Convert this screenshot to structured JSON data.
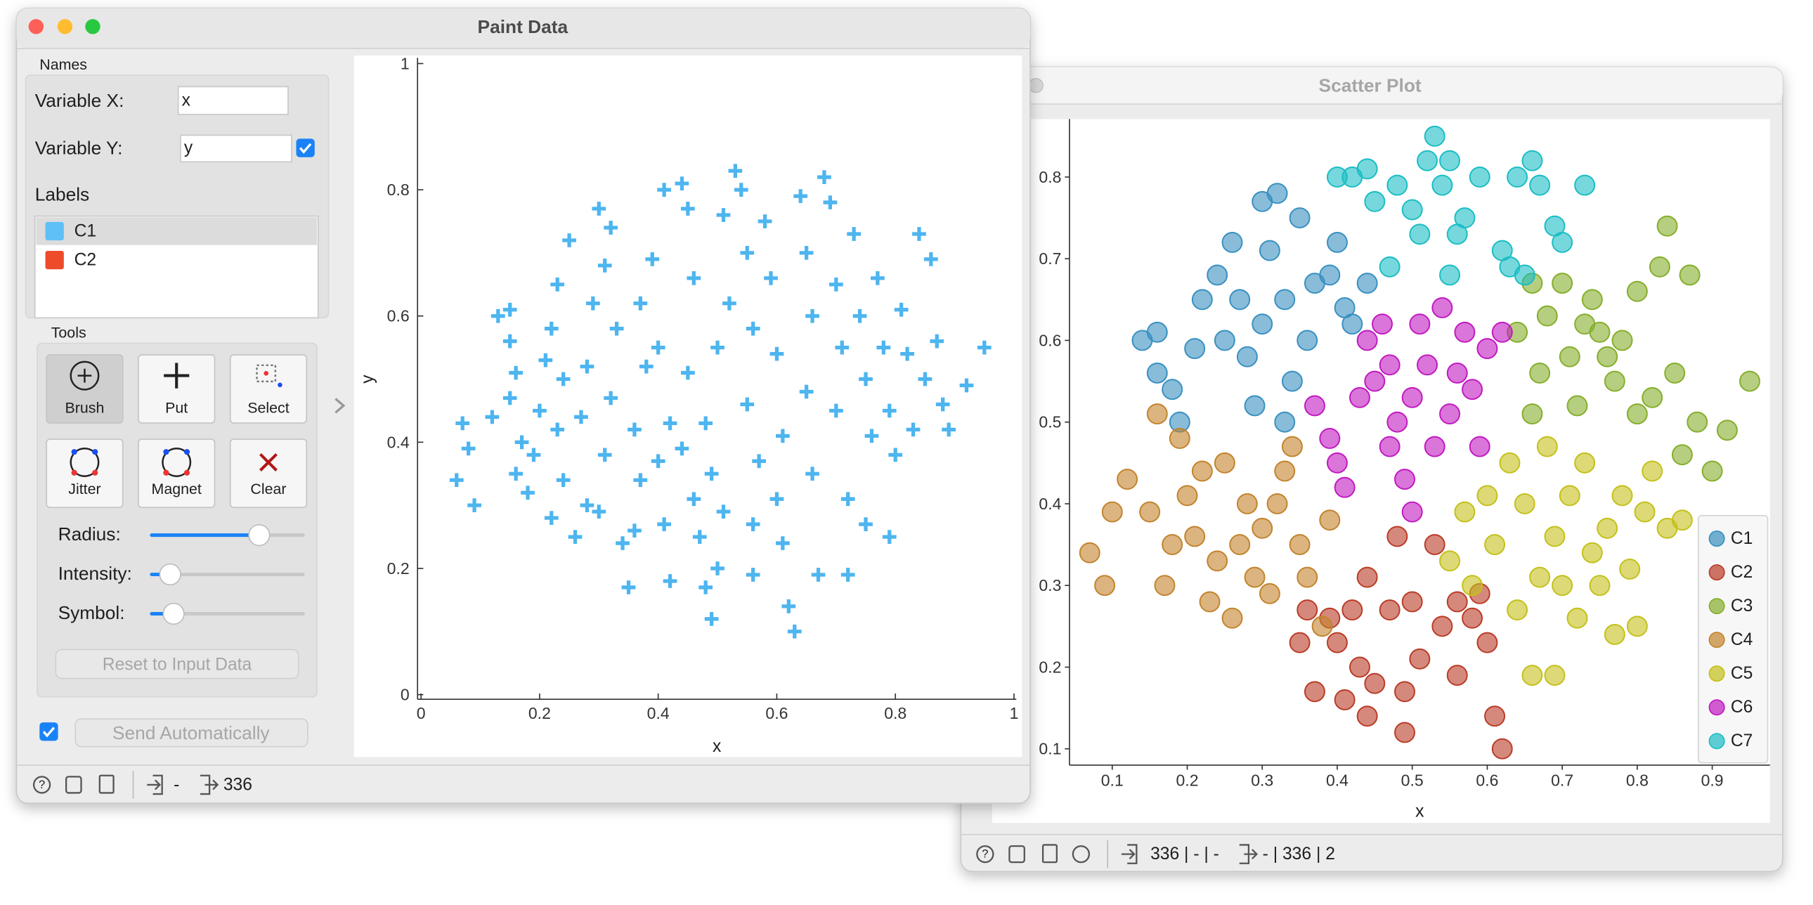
{
  "paint_window": {
    "title": "Paint Data",
    "names_heading": "Names",
    "variable_x_label": "Variable X:",
    "variable_x_value": "x",
    "variable_y_label": "Variable Y:",
    "variable_y_value": "y",
    "labels_heading": "Labels",
    "labels": [
      {
        "name": "C1",
        "color": "#5ec0f7"
      },
      {
        "name": "C2",
        "color": "#ee4b2b"
      }
    ],
    "tools_heading": "Tools",
    "tools": [
      "Brush",
      "Put",
      "Select",
      "Jitter",
      "Magnet",
      "Clear"
    ],
    "sliders": [
      "Radius:",
      "Intensity:",
      "Symbol:"
    ],
    "reset_button": "Reset to Input Data",
    "send_button": "Send Automatically",
    "status_input": "-",
    "status_output": "336"
  },
  "scatter_window": {
    "title": "Scatter Plot",
    "status_input": "336 | - | -",
    "status_output": "- | 336 | 2"
  },
  "chart_data": [
    {
      "type": "scatter",
      "marker": "plus",
      "color": "#4db5ef",
      "xlabel": "x",
      "ylabel": "y",
      "xlim": [
        0,
        1
      ],
      "ylim": [
        0,
        1
      ],
      "xticks": [
        0,
        0.2,
        0.4,
        0.6,
        0.8,
        1
      ],
      "yticks": [
        0,
        0.2,
        0.4,
        0.6,
        0.8,
        1
      ],
      "grid": false,
      "x": [
        0.07,
        0.06,
        0.09,
        0.08,
        0.12,
        0.13,
        0.15,
        0.15,
        0.16,
        0.15,
        0.17,
        0.16,
        0.18,
        0.19,
        0.2,
        0.21,
        0.22,
        0.23,
        0.25,
        0.24,
        0.23,
        0.22,
        0.24,
        0.26,
        0.28,
        0.27,
        0.28,
        0.29,
        0.3,
        0.31,
        0.32,
        0.33,
        0.32,
        0.31,
        0.3,
        0.34,
        0.35,
        0.36,
        0.37,
        0.36,
        0.38,
        0.37,
        0.39,
        0.41,
        0.4,
        0.42,
        0.4,
        0.41,
        0.42,
        0.44,
        0.45,
        0.46,
        0.45,
        0.44,
        0.46,
        0.47,
        0.48,
        0.49,
        0.5,
        0.51,
        0.49,
        0.48,
        0.5,
        0.52,
        0.51,
        0.53,
        0.54,
        0.55,
        0.56,
        0.55,
        0.57,
        0.56,
        0.56,
        0.58,
        0.59,
        0.6,
        0.61,
        0.6,
        0.61,
        0.62,
        0.63,
        0.64,
        0.65,
        0.66,
        0.65,
        0.66,
        0.67,
        0.68,
        0.69,
        0.7,
        0.71,
        0.7,
        0.72,
        0.72,
        0.73,
        0.74,
        0.75,
        0.76,
        0.75,
        0.77,
        0.78,
        0.79,
        0.8,
        0.79,
        0.81,
        0.82,
        0.83,
        0.84,
        0.85,
        0.86,
        0.87,
        0.88,
        0.89,
        0.92,
        0.95
      ],
      "values": [
        0.43,
        0.34,
        0.3,
        0.39,
        0.44,
        0.6,
        0.61,
        0.56,
        0.51,
        0.47,
        0.4,
        0.35,
        0.32,
        0.38,
        0.45,
        0.53,
        0.58,
        0.65,
        0.72,
        0.5,
        0.42,
        0.28,
        0.34,
        0.25,
        0.3,
        0.44,
        0.52,
        0.62,
        0.77,
        0.68,
        0.74,
        0.58,
        0.47,
        0.38,
        0.29,
        0.24,
        0.17,
        0.26,
        0.34,
        0.42,
        0.52,
        0.62,
        0.69,
        0.8,
        0.55,
        0.43,
        0.37,
        0.27,
        0.18,
        0.81,
        0.77,
        0.66,
        0.51,
        0.39,
        0.31,
        0.25,
        0.17,
        0.12,
        0.2,
        0.29,
        0.35,
        0.43,
        0.55,
        0.62,
        0.76,
        0.83,
        0.8,
        0.7,
        0.58,
        0.46,
        0.37,
        0.27,
        0.19,
        0.75,
        0.66,
        0.54,
        0.41,
        0.31,
        0.24,
        0.14,
        0.1,
        0.79,
        0.7,
        0.6,
        0.48,
        0.35,
        0.19,
        0.82,
        0.78,
        0.65,
        0.55,
        0.45,
        0.31,
        0.19,
        0.73,
        0.6,
        0.5,
        0.41,
        0.27,
        0.66,
        0.55,
        0.45,
        0.38,
        0.25,
        0.61,
        0.54,
        0.42,
        0.73,
        0.5,
        0.69,
        0.56,
        0.46,
        0.42,
        0.49,
        0.55
      ]
    },
    {
      "type": "scatter",
      "marker": "circle",
      "xlabel": "x",
      "legend": "lower right",
      "grid": false,
      "xlim": [
        0.043,
        0.977
      ],
      "ylim": [
        0.08,
        0.871
      ],
      "xticks": [
        0.1,
        0.2,
        0.3,
        0.4,
        0.5,
        0.6,
        0.7,
        0.8,
        0.9
      ],
      "yticks": [
        0.1,
        0.2,
        0.3,
        0.4,
        0.5,
        0.6,
        0.7,
        0.8
      ],
      "series": [
        {
          "name": "C1",
          "color": "#46b4f0",
          "x": [
            0.14,
            0.16,
            0.16,
            0.18,
            0.19,
            0.21,
            0.22,
            0.24,
            0.25,
            0.26,
            0.27,
            0.28,
            0.29,
            0.3,
            0.31,
            0.32,
            0.33,
            0.34,
            0.35,
            0.36,
            0.37,
            0.39,
            0.4,
            0.41,
            0.42,
            0.44,
            0.33,
            0.3
          ],
          "values": [
            0.6,
            0.61,
            0.56,
            0.54,
            0.5,
            0.59,
            0.65,
            0.68,
            0.6,
            0.72,
            0.65,
            0.58,
            0.52,
            0.77,
            0.71,
            0.78,
            0.65,
            0.55,
            0.75,
            0.6,
            0.67,
            0.68,
            0.72,
            0.64,
            0.62,
            0.67,
            0.5,
            0.62
          ]
        },
        {
          "name": "C2",
          "color": "#e84a30",
          "x": [
            0.35,
            0.36,
            0.37,
            0.39,
            0.4,
            0.42,
            0.43,
            0.44,
            0.45,
            0.47,
            0.48,
            0.49,
            0.49,
            0.5,
            0.51,
            0.53,
            0.54,
            0.56,
            0.56,
            0.58,
            0.59,
            0.6,
            0.61,
            0.62,
            0.41,
            0.44
          ],
          "values": [
            0.23,
            0.27,
            0.17,
            0.26,
            0.23,
            0.27,
            0.2,
            0.31,
            0.18,
            0.27,
            0.36,
            0.17,
            0.12,
            0.28,
            0.21,
            0.35,
            0.25,
            0.28,
            0.19,
            0.26,
            0.29,
            0.23,
            0.14,
            0.1,
            0.16,
            0.14
          ]
        },
        {
          "name": "C3",
          "color": "#a6d935",
          "x": [
            0.64,
            0.66,
            0.67,
            0.68,
            0.7,
            0.71,
            0.72,
            0.73,
            0.74,
            0.76,
            0.77,
            0.78,
            0.8,
            0.8,
            0.82,
            0.83,
            0.84,
            0.85,
            0.86,
            0.87,
            0.88,
            0.9,
            0.92,
            0.95,
            0.66,
            0.75
          ],
          "values": [
            0.61,
            0.67,
            0.56,
            0.63,
            0.67,
            0.58,
            0.52,
            0.62,
            0.65,
            0.58,
            0.55,
            0.6,
            0.66,
            0.51,
            0.53,
            0.69,
            0.74,
            0.56,
            0.46,
            0.68,
            0.5,
            0.44,
            0.49,
            0.55,
            0.51,
            0.61
          ]
        },
        {
          "name": "C4",
          "color": "#f3a437",
          "x": [
            0.07,
            0.09,
            0.1,
            0.12,
            0.15,
            0.16,
            0.17,
            0.18,
            0.19,
            0.2,
            0.21,
            0.22,
            0.23,
            0.24,
            0.25,
            0.26,
            0.27,
            0.28,
            0.29,
            0.3,
            0.31,
            0.32,
            0.33,
            0.34,
            0.35,
            0.36,
            0.38,
            0.39
          ],
          "values": [
            0.34,
            0.3,
            0.39,
            0.43,
            0.39,
            0.51,
            0.3,
            0.35,
            0.48,
            0.41,
            0.36,
            0.44,
            0.28,
            0.33,
            0.45,
            0.26,
            0.35,
            0.4,
            0.31,
            0.37,
            0.29,
            0.4,
            0.44,
            0.47,
            0.35,
            0.31,
            0.25,
            0.38
          ]
        },
        {
          "name": "C5",
          "color": "#f5f021",
          "x": [
            0.55,
            0.57,
            0.58,
            0.6,
            0.61,
            0.63,
            0.64,
            0.65,
            0.66,
            0.67,
            0.68,
            0.69,
            0.7,
            0.71,
            0.72,
            0.73,
            0.74,
            0.75,
            0.76,
            0.77,
            0.78,
            0.79,
            0.8,
            0.81,
            0.82,
            0.84,
            0.86,
            0.69
          ],
          "values": [
            0.33,
            0.39,
            0.3,
            0.41,
            0.35,
            0.45,
            0.27,
            0.4,
            0.19,
            0.31,
            0.47,
            0.36,
            0.3,
            0.41,
            0.26,
            0.45,
            0.34,
            0.3,
            0.37,
            0.24,
            0.41,
            0.32,
            0.25,
            0.39,
            0.44,
            0.37,
            0.38,
            0.19
          ]
        },
        {
          "name": "C6",
          "color": "#f11ff0",
          "x": [
            0.37,
            0.39,
            0.4,
            0.41,
            0.43,
            0.44,
            0.45,
            0.46,
            0.47,
            0.48,
            0.49,
            0.5,
            0.51,
            0.52,
            0.53,
            0.54,
            0.55,
            0.56,
            0.57,
            0.58,
            0.59,
            0.6,
            0.62,
            0.47,
            0.5
          ],
          "values": [
            0.52,
            0.48,
            0.45,
            0.42,
            0.53,
            0.6,
            0.55,
            0.62,
            0.57,
            0.5,
            0.43,
            0.53,
            0.62,
            0.57,
            0.47,
            0.64,
            0.51,
            0.56,
            0.61,
            0.54,
            0.47,
            0.59,
            0.61,
            0.47,
            0.39
          ]
        },
        {
          "name": "C7",
          "color": "#21ecf5",
          "x": [
            0.4,
            0.42,
            0.44,
            0.45,
            0.47,
            0.48,
            0.5,
            0.51,
            0.52,
            0.53,
            0.54,
            0.55,
            0.55,
            0.56,
            0.57,
            0.59,
            0.62,
            0.63,
            0.64,
            0.65,
            0.66,
            0.67,
            0.69,
            0.7,
            0.73
          ],
          "values": [
            0.8,
            0.8,
            0.81,
            0.77,
            0.69,
            0.79,
            0.76,
            0.73,
            0.82,
            0.85,
            0.79,
            0.82,
            0.68,
            0.73,
            0.75,
            0.8,
            0.71,
            0.69,
            0.8,
            0.68,
            0.82,
            0.79,
            0.74,
            0.72,
            0.79
          ]
        }
      ]
    }
  ]
}
